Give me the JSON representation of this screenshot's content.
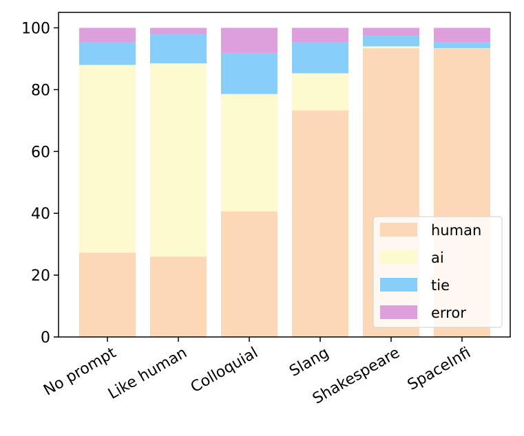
{
  "chart_data": {
    "type": "bar",
    "stacked": true,
    "title": "",
    "xlabel": "",
    "ylabel": "",
    "ylim": [
      0,
      105
    ],
    "yticks": [
      0,
      20,
      40,
      60,
      80,
      100
    ],
    "categories": [
      "No prompt",
      "Like human",
      "Colloquial",
      "Slang",
      "Shakespeare",
      "SpaceInfi"
    ],
    "series": [
      {
        "name": "human",
        "color": "#fdd8b7",
        "values": [
          27.3,
          26.0,
          40.6,
          73.3,
          93.4,
          93.3
        ]
      },
      {
        "name": "ai",
        "color": "#fefad0",
        "values": [
          60.7,
          62.5,
          38.0,
          12.0,
          0.6,
          0.1
        ]
      },
      {
        "name": "tie",
        "color": "#87cefa",
        "values": [
          7.3,
          9.5,
          13.3,
          10.0,
          3.4,
          2.0
        ]
      },
      {
        "name": "error",
        "color": "#dda0dd",
        "values": [
          4.7,
          2.0,
          8.1,
          4.7,
          2.6,
          4.6
        ]
      }
    ],
    "legend": {
      "position": "lower-right",
      "entries": [
        "human",
        "ai",
        "tie",
        "error"
      ]
    },
    "grid": false
  }
}
